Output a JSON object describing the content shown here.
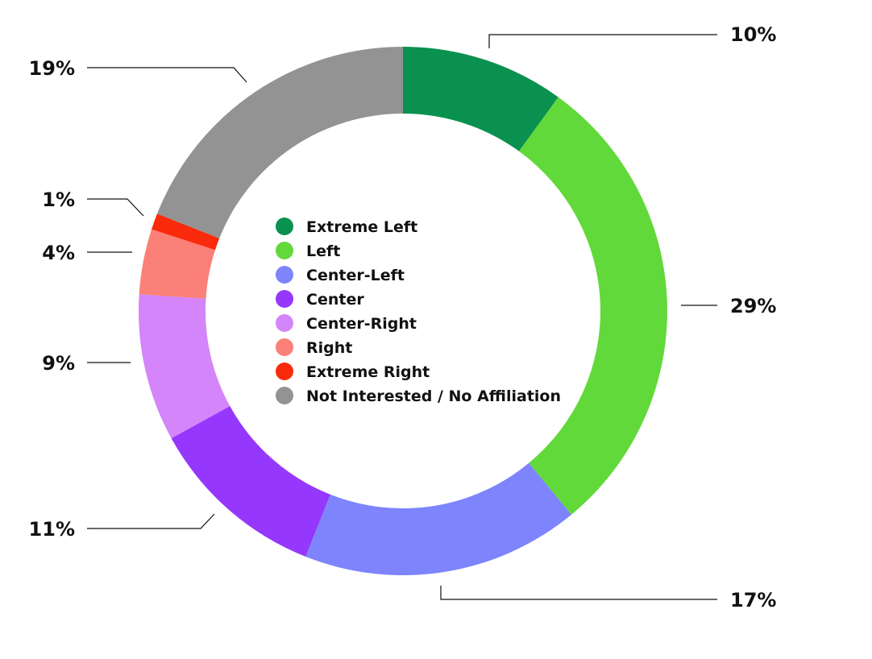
{
  "chart_data": {
    "type": "pie",
    "donut": true,
    "title": "",
    "unit": "%",
    "legend_placement": "center",
    "categories": [
      "Extreme Left",
      "Left",
      "Center-Left",
      "Center",
      "Center-Right",
      "Right",
      "Extreme Right",
      "Not Interested / No Affiliation"
    ],
    "values": [
      10,
      29,
      17,
      11,
      9,
      4,
      1,
      19
    ],
    "labels": [
      "10%",
      "29%",
      "17%",
      "11%",
      "9%",
      "4%",
      "1%",
      "19%"
    ],
    "colors": [
      "#0a9150",
      "#62d93a",
      "#7d84fc",
      "#9537fc",
      "#d485f9",
      "#fb8077",
      "#fa2a0c",
      "#939393"
    ]
  }
}
